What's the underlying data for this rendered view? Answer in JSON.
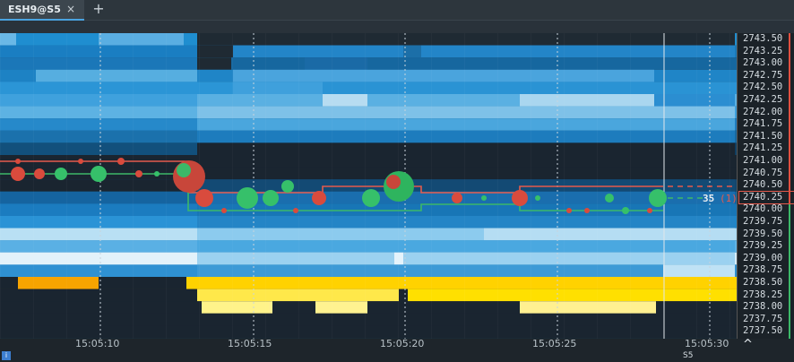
{
  "tab": {
    "label": "ESH9@S5",
    "close": "×",
    "add": "+"
  },
  "price_axis": {
    "prices": [
      "2743.50",
      "2743.25",
      "2743.00",
      "2742.75",
      "2742.50",
      "2742.25",
      "2742.00",
      "2741.75",
      "2741.50",
      "2741.25",
      "2741.00",
      "2740.75",
      "2740.50",
      "2740.25",
      "2740.00",
      "2739.75",
      "2739.50",
      "2739.25",
      "2739.00",
      "2738.75",
      "2738.50",
      "2738.25",
      "2738.00",
      "2737.75",
      "2737.50"
    ],
    "current_price": "2740.25"
  },
  "trade_label": {
    "volume": "35",
    "count": "(1)"
  },
  "time_axis": {
    "labels": [
      "15:05:10",
      "15:05:15",
      "15:05:20",
      "15:05:25",
      "15:05:30"
    ],
    "interval": "S5"
  },
  "colors": {
    "bid": "#e24a3d",
    "ask": "#36c06a",
    "heat_low": "#0c4f86",
    "heat_high": "#ffe600"
  },
  "icons": [
    "info-icon",
    "chevron-up-icon",
    "close-icon",
    "plus-icon"
  ]
}
